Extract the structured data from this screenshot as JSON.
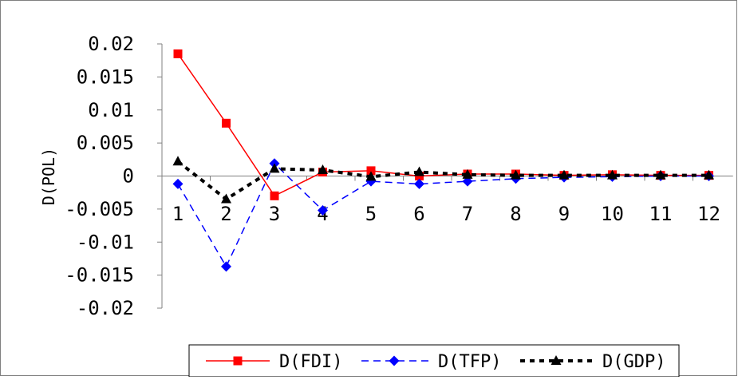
{
  "chart_data": {
    "type": "line",
    "title": "",
    "xlabel": "",
    "ylabel": "D(POL)",
    "categories": [
      "1",
      "2",
      "3",
      "4",
      "5",
      "6",
      "7",
      "8",
      "9",
      "10",
      "11",
      "12"
    ],
    "ylim": [
      -0.02,
      0.02
    ],
    "yticks": [
      0.02,
      0.015,
      0.01,
      0.005,
      0,
      -0.005,
      -0.01,
      -0.015,
      -0.02
    ],
    "ytick_labels": [
      "0.02",
      "0.015",
      "0.01",
      "0.005",
      "0",
      "-0.005",
      "-0.01",
      "-0.015",
      "-0.02"
    ],
    "grid": false,
    "legend_position": "bottom",
    "series": [
      {
        "name": "D(FDI)",
        "color": "#ff0000",
        "marker": "square",
        "line_style": "solid",
        "values": [
          0.0185,
          0.008,
          -0.003,
          0.0006,
          0.0008,
          0.0,
          0.0003,
          0.0003,
          0.0001,
          0.0002,
          0.0001,
          0.0001
        ]
      },
      {
        "name": "D(TFP)",
        "color": "#0000ff",
        "marker": "diamond",
        "line_style": "dashed",
        "values": [
          -0.0012,
          -0.0137,
          0.0019,
          -0.0052,
          -0.0008,
          -0.0012,
          -0.0008,
          -0.0004,
          -0.0002,
          -0.0001,
          0.0,
          0.0
        ]
      },
      {
        "name": "D(GDP)",
        "color": "#000000",
        "marker": "triangle",
        "line_style": "dotted",
        "values": [
          0.0022,
          -0.0035,
          0.0011,
          0.0009,
          -0.0001,
          0.0006,
          0.0002,
          0.0001,
          0.0001,
          0.0001,
          0.0001,
          0.0001
        ]
      }
    ]
  }
}
